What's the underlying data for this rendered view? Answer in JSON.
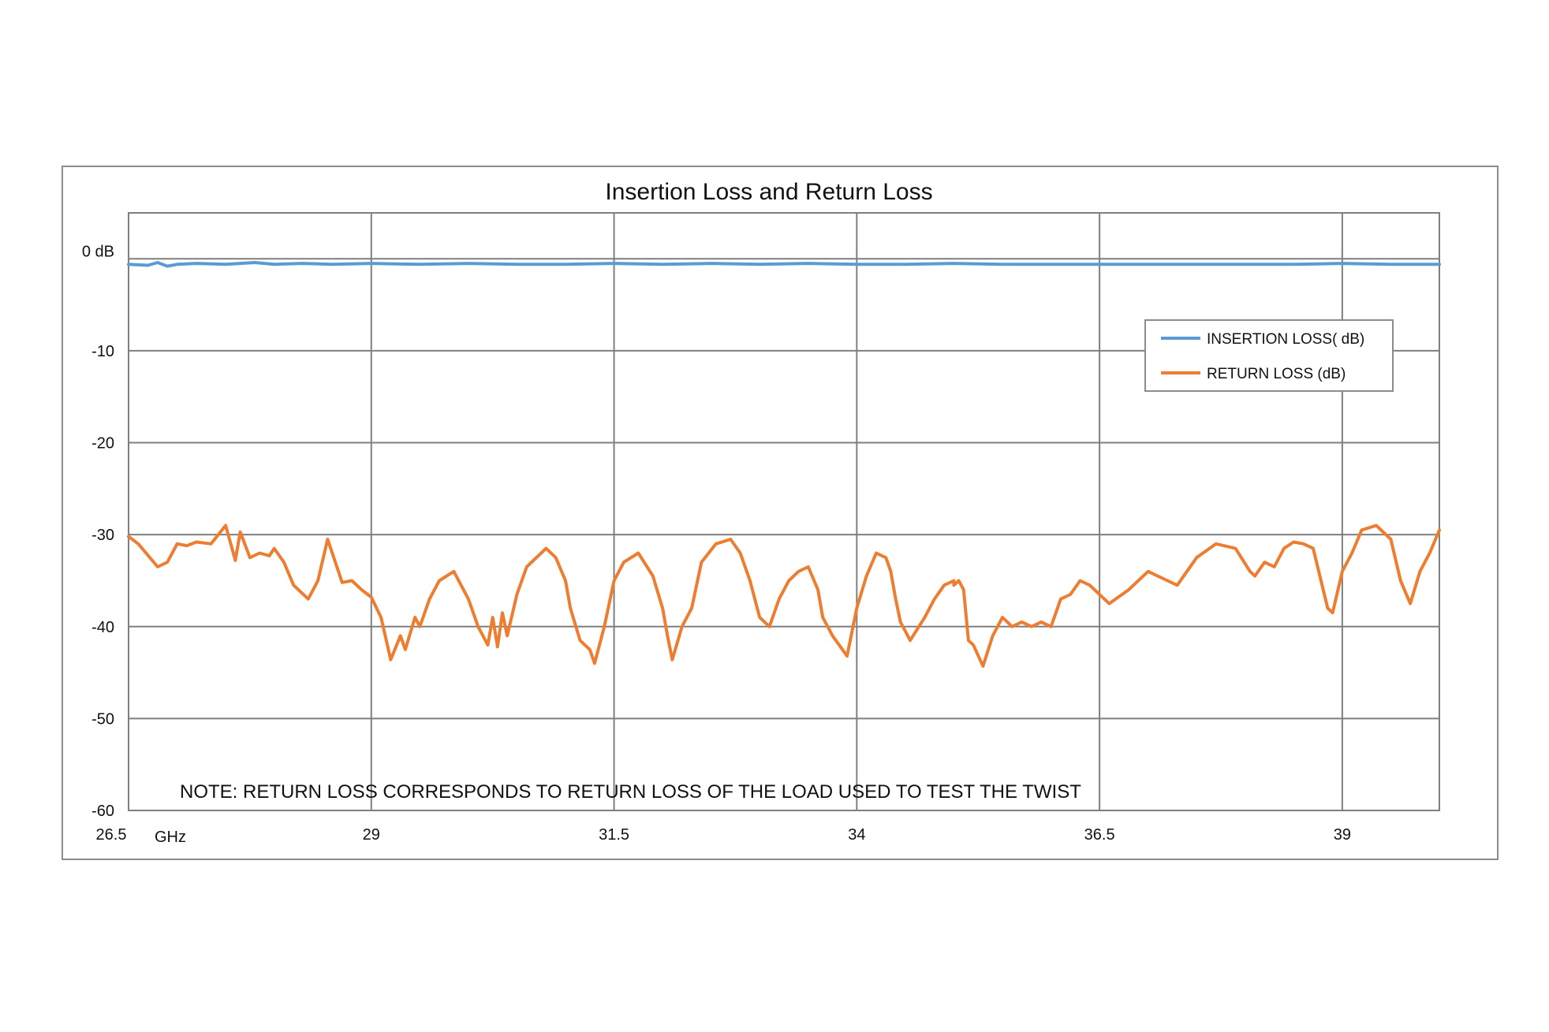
{
  "chart_data": {
    "type": "line",
    "title": "Insertion Loss and Return Loss",
    "xlabel": "",
    "ylabel": "",
    "x_unit_label": "GHz",
    "xlim": [
      26.5,
      40.0
    ],
    "ylim": [
      -60,
      5
    ],
    "x_ticks": [
      26.5,
      29,
      31.5,
      34,
      36.5,
      39
    ],
    "x_tick_labels": [
      "26.5",
      "29",
      "31.5",
      "34",
      "36.5",
      "39"
    ],
    "y_ticks": [
      0,
      -10,
      -20,
      -30,
      -40,
      -50,
      -60
    ],
    "y_tick_labels": [
      "0 dB",
      "-10",
      "-20",
      "-30",
      "-40",
      "-50",
      "-60"
    ],
    "grid": true,
    "legend_position": "right",
    "note": "NOTE:  RETURN LOSS CORRESPONDS TO RETURN LOSS OF THE LOAD USED TO TEST THE TWIST",
    "series": [
      {
        "name": "INSERTION LOSS( dB)",
        "color": "#5b9bd5",
        "x": [
          26.5,
          26.7,
          26.8,
          26.9,
          27.0,
          27.2,
          27.5,
          27.8,
          28.0,
          28.3,
          28.6,
          29.0,
          29.5,
          30.0,
          30.5,
          31.0,
          31.5,
          32.0,
          32.5,
          33.0,
          33.5,
          34.0,
          34.5,
          35.0,
          35.5,
          36.0,
          36.5,
          37.0,
          37.5,
          38.0,
          38.5,
          39.0,
          39.5,
          40.0
        ],
        "values": [
          -0.6,
          -0.7,
          -0.4,
          -0.8,
          -0.6,
          -0.5,
          -0.6,
          -0.4,
          -0.6,
          -0.5,
          -0.6,
          -0.5,
          -0.6,
          -0.5,
          -0.6,
          -0.6,
          -0.5,
          -0.6,
          -0.5,
          -0.6,
          -0.5,
          -0.6,
          -0.6,
          -0.5,
          -0.6,
          -0.6,
          -0.6,
          -0.6,
          -0.6,
          -0.6,
          -0.6,
          -0.5,
          -0.6,
          -0.6
        ]
      },
      {
        "name": "RETURN LOSS (dB)",
        "color": "#ed7d31",
        "x": [
          26.5,
          26.6,
          26.8,
          26.9,
          27.0,
          27.1,
          27.2,
          27.35,
          27.5,
          27.6,
          27.65,
          27.75,
          27.85,
          27.95,
          28.0,
          28.1,
          28.2,
          28.35,
          28.45,
          28.55,
          28.7,
          28.8,
          28.9,
          29.0,
          29.1,
          29.2,
          29.3,
          29.35,
          29.45,
          29.5,
          29.6,
          29.7,
          29.85,
          30.0,
          30.1,
          30.2,
          30.25,
          30.3,
          30.35,
          30.4,
          30.5,
          30.6,
          30.8,
          30.9,
          31.0,
          31.05,
          31.15,
          31.25,
          31.3,
          31.4,
          31.5,
          31.6,
          31.75,
          31.9,
          32.0,
          32.05,
          32.1,
          32.2,
          32.3,
          32.4,
          32.55,
          32.7,
          32.8,
          32.9,
          33.0,
          33.1,
          33.2,
          33.3,
          33.4,
          33.5,
          33.6,
          33.65,
          33.75,
          33.9,
          34.0,
          34.1,
          34.2,
          34.3,
          34.35,
          34.4,
          34.45,
          34.55,
          34.7,
          34.8,
          34.9,
          35.0,
          35.0,
          35.05,
          35.1,
          35.15,
          35.2,
          35.3,
          35.4,
          35.5,
          35.6,
          35.7,
          35.8,
          35.9,
          36.0,
          36.1,
          36.2,
          36.3,
          36.4,
          36.5,
          36.6,
          36.8,
          37.0,
          37.2,
          37.3,
          37.5,
          37.7,
          37.9,
          38.05,
          38.1,
          38.2,
          38.3,
          38.4,
          38.5,
          38.6,
          38.7,
          38.85,
          38.9,
          39.0,
          39.1,
          39.2,
          39.35,
          39.5,
          39.6,
          39.7,
          39.8,
          39.9,
          40.0
        ],
        "values": [
          -30.2,
          -31.0,
          -33.5,
          -33.0,
          -31.0,
          -31.2,
          -30.8,
          -31.0,
          -29.0,
          -32.8,
          -29.7,
          -32.5,
          -32.0,
          -32.3,
          -31.5,
          -33.0,
          -35.5,
          -37.0,
          -35.0,
          -30.5,
          -35.2,
          -35.0,
          -36.0,
          -36.8,
          -39.0,
          -43.6,
          -41.0,
          -42.5,
          -39.0,
          -40.0,
          -37.0,
          -35.0,
          -34.0,
          -37.0,
          -40.0,
          -42.0,
          -39.0,
          -42.2,
          -38.5,
          -41.0,
          -36.5,
          -33.5,
          -31.5,
          -32.5,
          -35.0,
          -38.0,
          -41.5,
          -42.5,
          -44.0,
          -40.0,
          -35.0,
          -33.0,
          -32.0,
          -34.5,
          -38.0,
          -41.0,
          -43.6,
          -40.0,
          -38.0,
          -33.0,
          -31.0,
          -30.5,
          -32.0,
          -35.0,
          -39.0,
          -40.0,
          -37.0,
          -35.0,
          -34.0,
          -33.5,
          -36.0,
          -39.0,
          -41.0,
          -43.2,
          -38.0,
          -34.5,
          -32.0,
          -32.5,
          -34.0,
          -37.0,
          -39.5,
          -41.5,
          -39.0,
          -37.0,
          -35.5,
          -35.0,
          -35.5,
          -35.0,
          -36.0,
          -41.5,
          -42.0,
          -44.3,
          -41.0,
          -39.0,
          -40.0,
          -39.5,
          -40.0,
          -39.5,
          -40.0,
          -37.0,
          -36.5,
          -35.0,
          -35.5,
          -36.5,
          -37.5,
          -36.0,
          -34.0,
          -35.0,
          -35.5,
          -32.5,
          -31.0,
          -31.5,
          -34.0,
          -34.5,
          -33.0,
          -33.5,
          -31.5,
          -30.8,
          -31.0,
          -31.5,
          -38.0,
          -38.5,
          -34.0,
          -32.0,
          -29.5,
          -29.0,
          -30.5,
          -35.0,
          -37.5,
          -34.0,
          -32.0,
          -29.5
        ]
      }
    ]
  }
}
